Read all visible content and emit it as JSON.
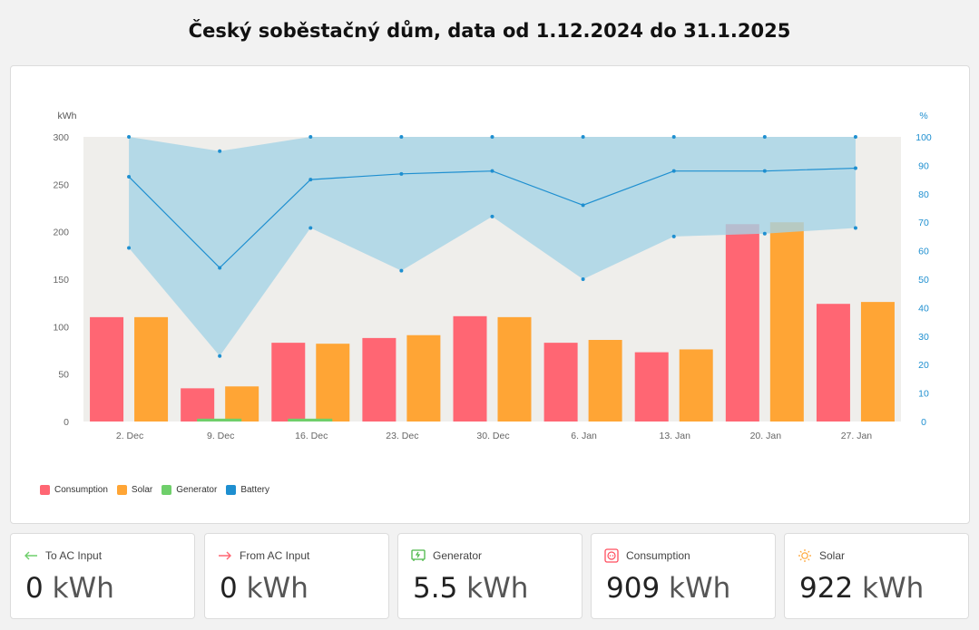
{
  "title": "Český soběstačný dům, data od 1.12.2024 do 31.1.2025",
  "chart_data": {
    "type": "bar",
    "left_axis_label": "kWh",
    "right_axis_label": "%",
    "left_ticks": [
      0,
      50,
      100,
      150,
      200,
      250,
      300
    ],
    "right_ticks": [
      0,
      10,
      20,
      30,
      40,
      50,
      60,
      70,
      80,
      90,
      100
    ],
    "ylim": [
      0,
      300
    ],
    "y2lim": [
      0,
      100
    ],
    "categories": [
      "2. Dec",
      "9. Dec",
      "16. Dec",
      "23. Dec",
      "30. Dec",
      "6. Jan",
      "13. Jan",
      "20. Jan",
      "27. Jan"
    ],
    "series": [
      {
        "name": "Consumption",
        "color": "#ff6673",
        "values": [
          110,
          35,
          83,
          88,
          111,
          83,
          73,
          208,
          124
        ]
      },
      {
        "name": "Solar",
        "color": "#ffa535",
        "values": [
          110,
          37,
          82,
          91,
          110,
          86,
          76,
          210,
          126
        ]
      },
      {
        "name": "Generator",
        "color": "#6fcf6b",
        "values": [
          0,
          3,
          3,
          0,
          0,
          0,
          0,
          0,
          0
        ]
      }
    ],
    "battery": {
      "name": "Battery",
      "color": "#1e8fd0",
      "band_color": "#a5d3e6",
      "max": [
        100,
        95,
        100,
        100,
        100,
        100,
        100,
        100,
        100
      ],
      "avg": [
        86,
        54,
        85,
        87,
        88,
        76,
        88,
        88,
        89
      ],
      "min": [
        61,
        23,
        68,
        53,
        72,
        50,
        65,
        66,
        68
      ]
    },
    "grid": false,
    "legend_position": "bottom-left"
  },
  "legend": [
    {
      "label": "Consumption",
      "color": "#ff6673"
    },
    {
      "label": "Solar",
      "color": "#ffa535"
    },
    {
      "label": "Generator",
      "color": "#6fcf6b"
    },
    {
      "label": "Battery",
      "color": "#1e8fd0"
    }
  ],
  "tiles": [
    {
      "label": "To AC Input",
      "value": "0",
      "unit": "kWh",
      "icon": "arrow-left-icon"
    },
    {
      "label": "From AC Input",
      "value": "0",
      "unit": "kWh",
      "icon": "arrow-right-icon"
    },
    {
      "label": "Generator",
      "value": "5.5",
      "unit": "kWh",
      "icon": "generator-icon"
    },
    {
      "label": "Consumption",
      "value": "909",
      "unit": "kWh",
      "icon": "outlet-icon"
    },
    {
      "label": "Solar",
      "value": "922",
      "unit": "kWh",
      "icon": "sun-icon"
    }
  ]
}
